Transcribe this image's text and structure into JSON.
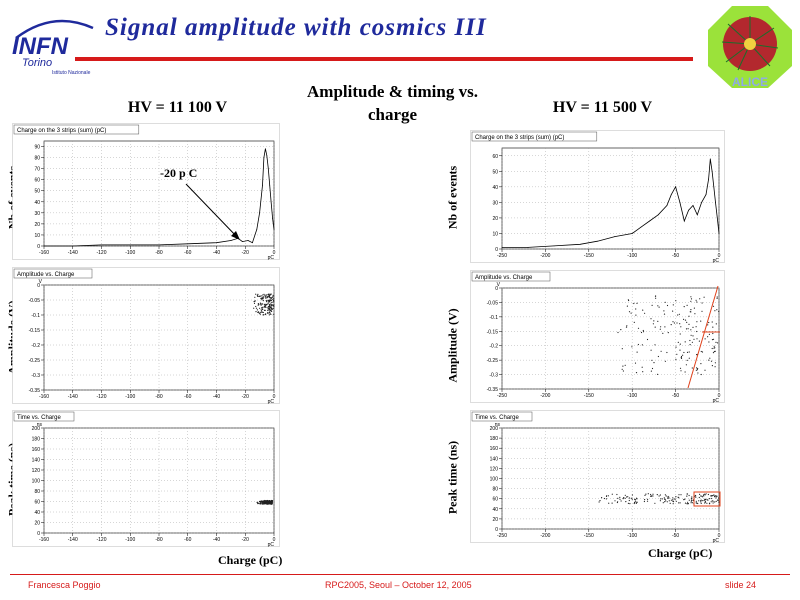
{
  "header": {
    "title": "Signal amplitude with cosmics III",
    "logo_line1": "INFN",
    "logo_line2": "Torino",
    "logo_line3": "Istituto Nazionale",
    "alice_text": "ALICE"
  },
  "center_heading": "Amplitude & timing vs. charge",
  "left": {
    "hv_label": "HV = 11 100 V",
    "annotation": "-20 p C",
    "ylabels": [
      "Nb of events",
      "Amplitude (V)",
      "Peak time (ns)"
    ],
    "xlabel": "Charge (pC)"
  },
  "right": {
    "hv_label": "HV = 11 500 V",
    "ylabels": [
      "Nb of events",
      "Amplitude (V)",
      "Peak time (ns)"
    ],
    "xlabel": "Charge (pC)"
  },
  "plot_titles": {
    "hist": "Charge on the 3 strips (sum) (pC)",
    "amp": "Amplitude vs. Charge",
    "time": "Time vs. Charge"
  },
  "chart_data": [
    {
      "type": "line",
      "title": "Charge on the 3 strips (sum) (pC)",
      "panel": "HV 11 100 V",
      "xlabel": "pC",
      "xlim": [
        -160,
        0
      ],
      "ylim": [
        0,
        95
      ],
      "xticks": [
        -160,
        -140,
        -120,
        -100,
        -80,
        -60,
        -40,
        -20,
        0
      ],
      "yticks": [
        0,
        10,
        20,
        30,
        40,
        50,
        60,
        70,
        80,
        90
      ],
      "x": [
        -160,
        -140,
        -120,
        -100,
        -80,
        -60,
        -40,
        -30,
        -25,
        -22,
        -18,
        -15,
        -12,
        -10,
        -8,
        -7,
        -6,
        -5,
        -4,
        -3,
        -2,
        -1,
        0
      ],
      "y": [
        0,
        0,
        1,
        1,
        1,
        2,
        3,
        5,
        7,
        4,
        5,
        3,
        15,
        30,
        55,
        80,
        88,
        82,
        70,
        55,
        40,
        25,
        15
      ]
    },
    {
      "type": "scatter",
      "title": "Amplitude vs. Charge",
      "panel": "HV 11 100 V",
      "xlabel": "pC",
      "ylabel": "V",
      "xlim": [
        -160,
        0
      ],
      "ylim": [
        -0.35,
        0
      ],
      "xticks": [
        -160,
        -140,
        -120,
        -100,
        -80,
        -60,
        -40,
        -20,
        0
      ],
      "yticks": [
        -0.35,
        -0.3,
        -0.25,
        -0.2,
        -0.15,
        -0.1,
        -0.05,
        0
      ],
      "cluster": {
        "x_range": [
          -15,
          0
        ],
        "y_range": [
          -0.1,
          -0.03
        ]
      }
    },
    {
      "type": "scatter",
      "title": "Time vs. Charge",
      "panel": "HV 11 100 V",
      "xlabel": "pC",
      "ylabel": "ns",
      "xlim": [
        -160,
        0
      ],
      "ylim": [
        0,
        200
      ],
      "xticks": [
        -160,
        -140,
        -120,
        -100,
        -80,
        -60,
        -40,
        -20,
        0
      ],
      "yticks": [
        0,
        20,
        40,
        60,
        80,
        100,
        120,
        140,
        160,
        180,
        200
      ],
      "cluster": {
        "x_range": [
          -12,
          -1
        ],
        "y_range": [
          55,
          62
        ]
      }
    },
    {
      "type": "line",
      "title": "Charge on the 3 strips (sum) (pC)",
      "panel": "HV 11 500 V",
      "xlabel": "pC",
      "xlim": [
        -250,
        0
      ],
      "ylim": [
        0,
        65
      ],
      "xticks": [
        -250,
        -200,
        -150,
        -100,
        -50,
        0
      ],
      "yticks": [
        0,
        10,
        20,
        30,
        40,
        50,
        60
      ],
      "x": [
        -250,
        -220,
        -190,
        -160,
        -140,
        -120,
        -100,
        -90,
        -80,
        -70,
        -60,
        -55,
        -50,
        -45,
        -40,
        -35,
        -30,
        -25,
        -20,
        -15,
        -12,
        -10,
        -8,
        -6,
        -4,
        -2,
        0
      ],
      "y": [
        1,
        1,
        2,
        3,
        5,
        8,
        10,
        14,
        18,
        22,
        28,
        35,
        40,
        30,
        18,
        25,
        28,
        22,
        30,
        35,
        45,
        58,
        50,
        40,
        30,
        20,
        10
      ]
    },
    {
      "type": "scatter",
      "title": "Amplitude vs. Charge",
      "panel": "HV 11 500 V",
      "xlabel": "pC",
      "ylabel": "V",
      "xlim": [
        -250,
        0
      ],
      "ylim": [
        -0.35,
        0
      ],
      "xticks": [
        -250,
        -200,
        -150,
        -100,
        -50,
        0
      ],
      "yticks": [
        -0.35,
        -0.3,
        -0.25,
        -0.2,
        -0.15,
        -0.1,
        -0.05,
        0
      ],
      "cluster": {
        "x_range": [
          -120,
          0
        ],
        "y_range": [
          -0.3,
          -0.02
        ]
      }
    },
    {
      "type": "scatter",
      "title": "Time vs. Charge",
      "panel": "HV 11 500 V",
      "xlabel": "pC",
      "ylabel": "ns",
      "xlim": [
        -250,
        0
      ],
      "ylim": [
        0,
        200
      ],
      "xticks": [
        -250,
        -200,
        -150,
        -100,
        -50,
        0
      ],
      "yticks": [
        0,
        20,
        40,
        60,
        80,
        100,
        120,
        140,
        160,
        180,
        200
      ],
      "cluster": {
        "x_range": [
          -150,
          0
        ],
        "y_range": [
          50,
          70
        ]
      }
    }
  ],
  "footer": {
    "author": "Francesca Poggio",
    "event": "RPC2005, Seoul – October 12, 2005",
    "slide": "slide 24"
  }
}
